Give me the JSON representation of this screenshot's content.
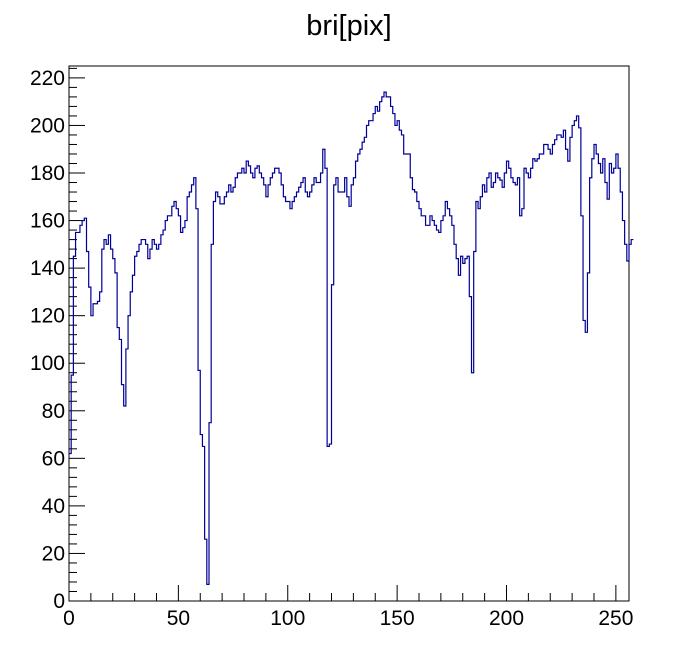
{
  "chart_data": {
    "type": "line",
    "title": "bri[pix]",
    "xlabel": "",
    "ylabel": "",
    "xlim": [
      0,
      256
    ],
    "ylim": [
      0,
      225
    ],
    "grid": false,
    "x_ticks": [
      0,
      50,
      100,
      150,
      200,
      250
    ],
    "x_tick_labels": [
      "0",
      "50",
      "100",
      "150",
      "200",
      "250"
    ],
    "y_ticks": [
      0,
      20,
      40,
      60,
      80,
      100,
      120,
      140,
      160,
      180,
      200,
      220
    ],
    "y_tick_labels": [
      "0",
      "20",
      "40",
      "60",
      "80",
      "100",
      "120",
      "140",
      "160",
      "180",
      "200",
      "220"
    ],
    "series": [
      {
        "color": "#000099",
        "bin_width": 1,
        "bins_start": 0,
        "values": [
          62,
          95,
          145,
          155,
          155,
          158,
          160,
          161,
          147,
          132,
          120,
          125,
          125,
          126,
          130,
          148,
          152,
          150,
          154,
          148,
          144,
          138,
          115,
          110,
          91,
          82,
          106,
          120,
          130,
          137,
          145,
          147,
          150,
          152,
          152,
          150,
          144,
          148,
          152,
          150,
          148,
          150,
          154,
          156,
          160,
          162,
          162,
          166,
          168,
          165,
          162,
          155,
          157,
          160,
          170,
          172,
          175,
          178,
          165,
          97,
          70,
          65,
          26,
          7,
          75,
          150,
          168,
          172,
          170,
          167,
          167,
          170,
          172,
          175,
          172,
          174,
          178,
          180,
          180,
          182,
          180,
          185,
          183,
          180,
          178,
          182,
          183,
          180,
          178,
          175,
          170,
          175,
          178,
          180,
          182,
          182,
          180,
          175,
          170,
          168,
          168,
          165,
          168,
          170,
          172,
          174,
          176,
          178,
          172,
          170,
          172,
          175,
          178,
          176,
          176,
          180,
          190,
          182,
          65,
          66,
          133,
          175,
          178,
          172,
          172,
          172,
          178,
          170,
          166,
          175,
          178,
          185,
          188,
          190,
          193,
          195,
          200,
          202,
          202,
          205,
          208,
          206,
          210,
          212,
          214,
          212,
          212,
          208,
          205,
          200,
          202,
          198,
          196,
          188,
          188,
          188,
          178,
          173,
          172,
          168,
          165,
          162,
          162,
          158,
          158,
          162,
          160,
          158,
          156,
          155,
          160,
          162,
          168,
          165,
          162,
          158,
          150,
          144,
          137,
          145,
          142,
          144,
          145,
          128,
          96,
          147,
          168,
          165,
          170,
          175,
          172,
          178,
          180,
          174,
          176,
          180,
          178,
          177,
          174,
          180,
          185,
          182,
          178,
          176,
          175,
          178,
          162,
          165,
          182,
          180,
          178,
          182,
          186,
          185,
          186,
          188,
          188,
          192,
          192,
          190,
          188,
          192,
          194,
          196,
          196,
          195,
          198,
          190,
          185,
          195,
          200,
          202,
          204,
          199,
          162,
          118,
          113,
          138,
          178,
          186,
          192,
          188,
          184,
          180,
          186,
          176,
          169,
          184,
          180,
          182,
          188,
          182,
          172,
          160,
          150,
          143,
          150,
          152
        ]
      }
    ]
  }
}
